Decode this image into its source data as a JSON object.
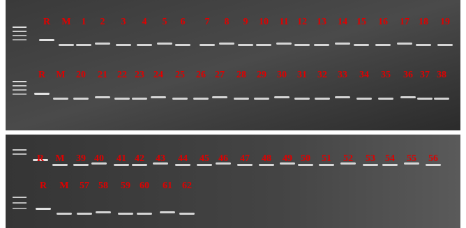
{
  "panels": [
    {
      "rows": [
        {
          "labels": [
            "R",
            "M",
            "1",
            "2",
            "3",
            "4",
            "5",
            "6",
            "7",
            "8",
            "9",
            "10",
            "11",
            "12",
            "13",
            "14",
            "15",
            "16",
            "17",
            "18",
            "19"
          ]
        },
        {
          "labels": [
            "R",
            "M",
            "20",
            "21",
            "22",
            "23",
            "24",
            "25",
            "26",
            "27",
            "28",
            "29",
            "30",
            "31",
            "32",
            "33",
            "34",
            "35",
            "36",
            "37",
            "38"
          ]
        }
      ]
    },
    {
      "rows": [
        {
          "labels": [
            "R",
            "M",
            "39",
            "40",
            "41",
            "42",
            "43",
            "44",
            "45",
            "46",
            "47",
            "48",
            "49",
            "50",
            "51",
            "52",
            "53",
            "54",
            "55",
            "56"
          ]
        },
        {
          "labels": [
            "R",
            "M",
            "57",
            "58",
            "59",
            "60",
            "61",
            "62"
          ]
        }
      ]
    }
  ]
}
